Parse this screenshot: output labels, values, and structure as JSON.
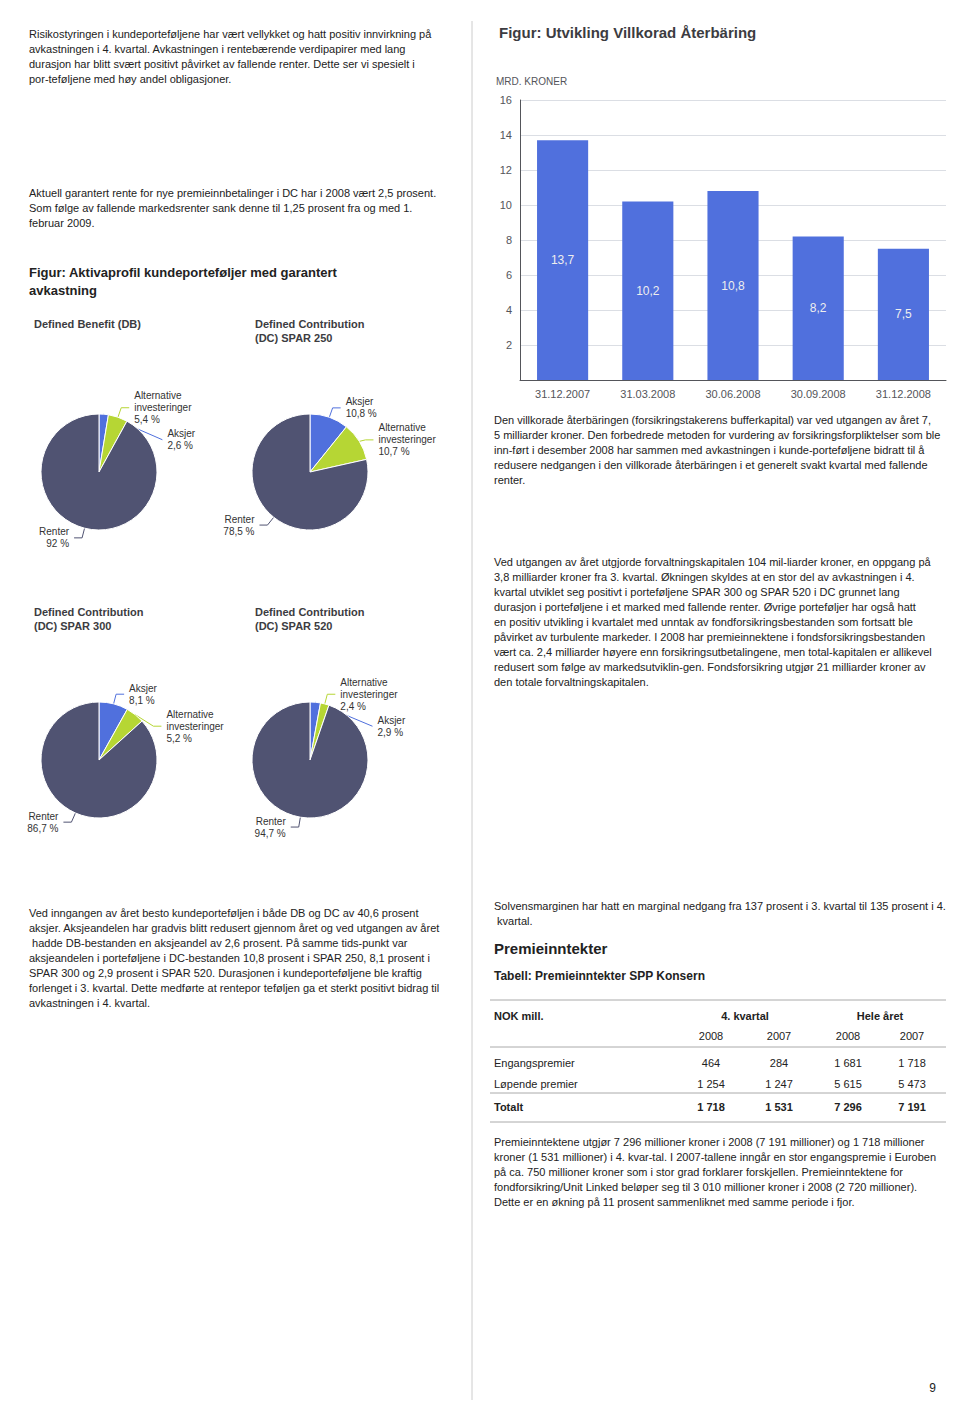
{
  "chart_data": [
    {
      "type": "bar",
      "title": "Figur: Utvikling Villkorad Återbäring",
      "ylabel": "MRD. KRONER",
      "categories": [
        "31.12.2007",
        "31.03.2008",
        "30.06.2008",
        "30.09.2008",
        "31.12.2008"
      ],
      "values": [
        13.7,
        10.2,
        10.8,
        8.2,
        7.5
      ],
      "value_labels": [
        "13,7",
        "10,2",
        "10,8",
        "8,2",
        "7,5"
      ],
      "data_labels": true,
      "ylim": [
        0,
        16
      ],
      "yticks": [
        2,
        4,
        6,
        8,
        10,
        12,
        14,
        16
      ],
      "grid": true
    },
    {
      "type": "pie",
      "title": "Defined Benefit (DB)",
      "categories": [
        "Aksjer",
        "Alternative\ninvesteringer",
        "Renter"
      ],
      "values": [
        2.6,
        5.4,
        92.0
      ],
      "value_labels": [
        "2,6 %",
        "5,4 %",
        "92 %"
      ],
      "data_labels": true
    },
    {
      "type": "pie",
      "title": "Defined Contribution\n(DC) SPAR 250",
      "categories": [
        "Aksjer",
        "Alternative\ninvesteringer",
        "Renter"
      ],
      "values": [
        10.8,
        10.7,
        78.5
      ],
      "value_labels": [
        "10,8 %",
        "10,7 %",
        "78,5 %"
      ],
      "data_labels": true
    },
    {
      "type": "pie",
      "title": "Defined Contribution\n(DC) SPAR 300",
      "categories": [
        "Aksjer",
        "Alternative\ninvesteringer",
        "Renter"
      ],
      "values": [
        8.1,
        5.2,
        86.7
      ],
      "value_labels": [
        "8,1 %",
        "5,2 %",
        "86,7 %"
      ],
      "data_labels": true
    },
    {
      "type": "pie",
      "title": "Defined Contribution\n(DC) SPAR 520",
      "categories": [
        "Aksjer",
        "Alternative\ninvesteringer",
        "Renter"
      ],
      "values": [
        2.9,
        2.4,
        94.7
      ],
      "value_labels": [
        "2,9 %",
        "2,4 %",
        "94,7 %"
      ],
      "data_labels": true
    },
    {
      "type": "table",
      "title": "Tabell: Premieinntekter SPP Konsern",
      "header": [
        "NOK mill.",
        "4. kvartal",
        "Hele året"
      ],
      "subheader": [
        "2008",
        "2007",
        "2008",
        "2007"
      ],
      "rows": [
        [
          "Engangspremier",
          "464",
          "284",
          "1 681",
          "1 718"
        ],
        [
          "Løpende premier",
          "1 254",
          "1 247",
          "5 615",
          "5 473"
        ],
        [
          "Totalt",
          "1 718",
          "1 531",
          "7 296",
          "7 191"
        ]
      ]
    }
  ],
  "annotations": [
    "Risikostyringen i kundeporteføljene har vært vellykket og hatt positiv innvirkning på avkastningen i 4. kvartal. Avkastningen i rentebærende verdipapirer med lang durasjon har blitt svært positivt påvirket av fallende renter. Dette ser vi spesielt i por-teføljene med høy andel obligasjoner.",
    "Aktuell garantert rente for nye premieinnbetalinger i DC har i 2008 vært 2,5 prosent. Som følge av fallende markedsrenter sank denne til 1,25 prosent fra og med 1. februar 2009.",
    "Figur: Aktivaprofil kundeporteføljer med garantert\navkastning",
    "Ved inngangen av året besto kundeporteføljen i både DB og DC av 40,6 prosent aksjer. Aksjeandelen har gradvis blitt redusert gjennom året og ved utgangen av året hadde DB-bestanden en aksjeandel av 2,6 prosent. På samme tids-punkt var aksjeandelen i porteføljene i DC-bestanden 10,8 prosent i SPAR 250, 8,1 prosent i SPAR 300 og 2,9 prosent i SPAR 520. Durasjonen i kundeporteføljene ble kraftig forlenget i 3. kvartal. Dette medførte at rentepor teføljen ga et sterkt positivt bidrag til avkastningen i 4. kvartal.",
    "Den villkorade återbäringen (forsikringstakerens bufferkapital) var ved utgangen av året 7,5 milliarder kroner. Den forbedrede metoden for vurdering av forsikringsforpliktelser som ble inn-ført i desember 2008 har sammen med avkastningen i kunde-porteføljene bidratt til å redusere nedgangen i den villkorade återbäringen i et generelt svakt kvartal med fallende renter.",
    "Ved utgangen av året utgjorde forvaltningskapitalen 104 mil-liarder kroner, en oppgang på 3,8 milliarder kroner fra 3. kvartal. Økningen skyldes at en stor del av avkastningen i 4. kvartal utviklet seg positivt i porteføljene SPAR 300 og SPAR 520 i DC grunnet lang durasjon i porteføljene i et marked med fallende renter. Øvrige porteføljer har også hatt en positiv utvikling i kvartalet med unntak av fondforsikringsbestanden som fortsatt ble påvirket av turbulente markeder. I 2008 har premieinnektene i fondsforsikringsbestanden vært ca. 2,4 milliarder høyere enn forsikringsutbetalingene, men total-kapitalen er allikevel redusert som følge av markedsutviklin-gen. Fondsforsikring utgjør 21 milliarder kroner av den totale forvaltningskapitalen.",
    "Solvensmarginen har hatt en marginal nedgang fra 137 prosent i 3. kvartal til 135 prosent i 4. kvartal.",
    "Premieinntekter",
    "Premieinntektene utgjør 7 296 millioner kroner i 2008 (7 191 millioner) og 1 718 millioner kroner (1 531 millioner) i 4. kvar-tal. I 2007-tallene inngår en stor engangspremie i Euroben på ca. 750 millioner kroner som i stor grad forklarer forskjellen. Premieinntektene for fondforsikring/Unit Linked beløper seg til 3 010 millioner kroner i 2008 (2 720 millioner). Dette er en økning på 11 prosent sammenliknet med samme periode i fjor.",
    "9"
  ]
}
